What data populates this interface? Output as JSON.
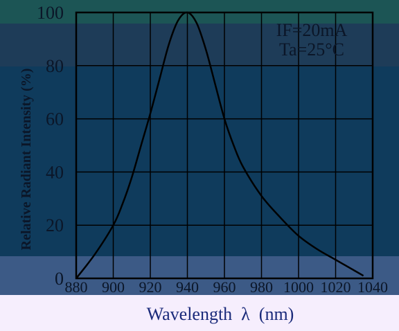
{
  "chart_data": {
    "type": "line",
    "title": "",
    "xlabel": "Wavelength  λ  (nm)",
    "ylabel": "Relative Radiant Intensity (%)",
    "xlim": [
      880,
      1040
    ],
    "ylim": [
      0,
      100
    ],
    "x_ticks": [
      "880",
      "900",
      "920",
      "940",
      "960",
      "980",
      "1000",
      "1020",
      "1040"
    ],
    "y_ticks": [
      "0",
      "20",
      "40",
      "60",
      "80",
      "100"
    ],
    "grid": true,
    "conditions": [
      "IF=20mA",
      "Ta=25°C"
    ],
    "series": [
      {
        "x": [
          880,
          890,
          900,
          905,
          910,
          915,
          920,
          925,
          930,
          935,
          940,
          945,
          950,
          955,
          960,
          965,
          970,
          980,
          990,
          1000,
          1010,
          1020,
          1030,
          1035
        ],
        "y": [
          0,
          9,
          20,
          28,
          38,
          50,
          62,
          75,
          88,
          97,
          100,
          96,
          86,
          73,
          60,
          50,
          42,
          31,
          23,
          16,
          11,
          7,
          3,
          1
        ]
      }
    ]
  },
  "colors": {
    "band_top": "#1c5555",
    "band_upper": "#1e3c58",
    "band_main": "#0f3b5c",
    "band_lower": "#3c5a86",
    "footer": "#f6eefd",
    "line": "#000000",
    "grid": "#000000",
    "text": "#0b1628",
    "footer_text": "#1a2a7a"
  }
}
